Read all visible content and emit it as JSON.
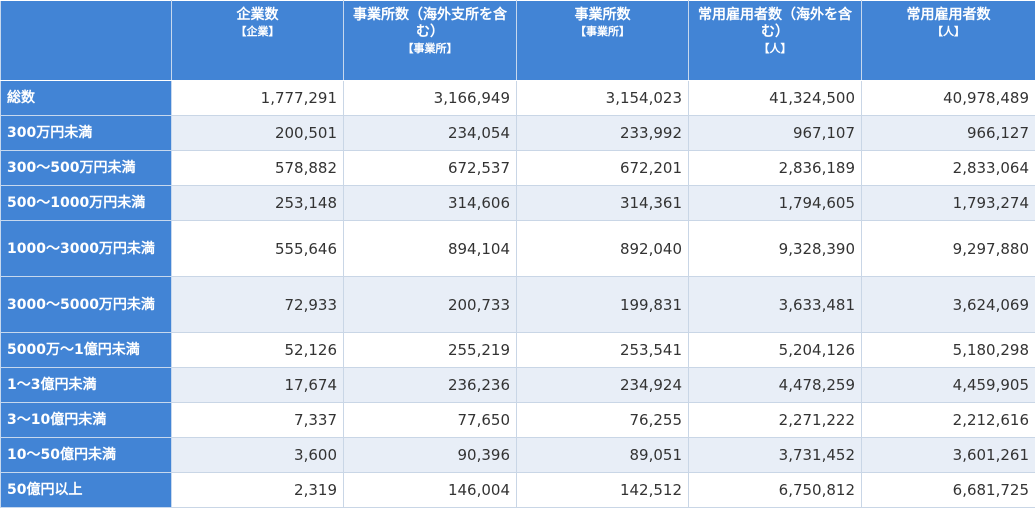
{
  "table": {
    "header": {
      "corner": "",
      "columns": [
        {
          "label": "企業数",
          "unit": "【企業】"
        },
        {
          "label": "事業所数（海外支所を含む）",
          "unit": "【事業所】"
        },
        {
          "label": "事業所数",
          "unit": "【事業所】"
        },
        {
          "label": "常用雇用者数（海外を含む）",
          "unit": "【人】"
        },
        {
          "label": "常用雇用者数",
          "unit": "【人】"
        }
      ]
    },
    "rows": [
      {
        "label": "総数",
        "values": [
          "1,777,291",
          "3,166,949",
          "3,154,023",
          "41,324,500",
          "40,978,489"
        ]
      },
      {
        "label": "300万円未満",
        "values": [
          "200,501",
          "234,054",
          "233,992",
          "967,107",
          "966,127"
        ]
      },
      {
        "label": "300～500万円未満",
        "values": [
          "578,882",
          "672,537",
          "672,201",
          "2,836,189",
          "2,833,064"
        ]
      },
      {
        "label": "500～1000万円未満",
        "values": [
          "253,148",
          "314,606",
          "314,361",
          "1,794,605",
          "1,793,274"
        ]
      },
      {
        "label": "1000～3000万円未満",
        "values": [
          "555,646",
          "894,104",
          "892,040",
          "9,328,390",
          "9,297,880"
        ]
      },
      {
        "label": "3000～5000万円未満",
        "values": [
          "72,933",
          "200,733",
          "199,831",
          "3,633,481",
          "3,624,069"
        ]
      },
      {
        "label": "5000万～1億円未満",
        "values": [
          "52,126",
          "255,219",
          "253,541",
          "5,204,126",
          "5,180,298"
        ]
      },
      {
        "label": "1～3億円未満",
        "values": [
          "17,674",
          "236,236",
          "234,924",
          "4,478,259",
          "4,459,905"
        ]
      },
      {
        "label": "3～10億円未満",
        "values": [
          "7,337",
          "77,650",
          "76,255",
          "2,271,222",
          "2,212,616"
        ]
      },
      {
        "label": "10～50億円未満",
        "values": [
          "3,600",
          "90,396",
          "89,051",
          "3,731,452",
          "3,601,261"
        ]
      },
      {
        "label": "50億円以上",
        "values": [
          "2,319",
          "146,004",
          "142,512",
          "6,750,812",
          "6,681,725"
        ]
      }
    ]
  },
  "colors": {
    "header_bg": "#4284d5",
    "header_text": "#ffffff",
    "row_alt_bg": "#e8eef7",
    "row_bg": "#ffffff",
    "cell_text": "#333333",
    "border": "#c9d6e6"
  }
}
